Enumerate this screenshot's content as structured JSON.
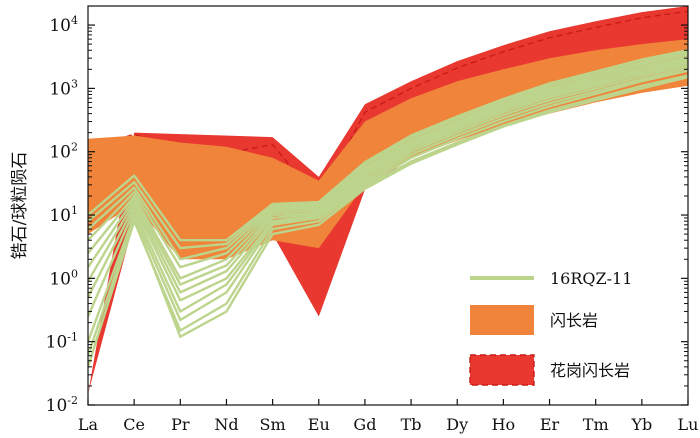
{
  "chart_data": {
    "type": "line",
    "title": "",
    "xlabel": "",
    "ylabel": "锆石/球粒陨石",
    "yscale": "log",
    "ylim": [
      0.01,
      20000
    ],
    "x": [
      "La",
      "Ce",
      "Pr",
      "Nd",
      "Sm",
      "Eu",
      "Gd",
      "Tb",
      "Dy",
      "Ho",
      "Er",
      "Tm",
      "Yb",
      "Lu"
    ],
    "yticks": [
      {
        "value": 0.01,
        "base": "10",
        "exp": "-2"
      },
      {
        "value": 0.1,
        "base": "10",
        "exp": "-1"
      },
      {
        "value": 1,
        "base": "10",
        "exp": "0"
      },
      {
        "value": 10,
        "base": "10",
        "exp": "1"
      },
      {
        "value": 100,
        "base": "10",
        "exp": "2"
      },
      {
        "value": 1000,
        "base": "10",
        "exp": "3"
      },
      {
        "value": 10000,
        "base": "10",
        "exp": "4"
      }
    ],
    "legend_position": "bottom-right",
    "fields": [
      {
        "name": "花岗闪长岩",
        "color": "#e8382f",
        "upper": [
          null,
          200,
          null,
          null,
          170,
          40,
          560,
          1300,
          2700,
          4800,
          8000,
          11500,
          16000,
          20000
        ],
        "lower": [
          0.015,
          8,
          null,
          null,
          5,
          0.25,
          25,
          80,
          180,
          350,
          600,
          900,
          1300,
          1800
        ],
        "dashed_line": [
          110,
          190,
          100,
          95,
          130,
          17,
          420,
          1000,
          2100,
          3800,
          6300,
          9200,
          13000,
          16500
        ]
      },
      {
        "name": "闪长岩",
        "color": "#f0843a",
        "upper": [
          160,
          180,
          140,
          120,
          80,
          35,
          300,
          700,
          1300,
          2000,
          3000,
          4000,
          5000,
          6000
        ],
        "lower": [
          5,
          15,
          2,
          2,
          4,
          3,
          30,
          80,
          150,
          260,
          400,
          600,
          850,
          1100
        ]
      }
    ],
    "sample": {
      "name": "16RQZ-11",
      "color": "#bcd48c",
      "series": [
        [
          0.04,
          8,
          0.15,
          0.4,
          6,
          8,
          28,
          70,
          140,
          260,
          450,
          700,
          1100,
          1600
        ],
        [
          0.1,
          10,
          0.22,
          0.6,
          7,
          9,
          30,
          80,
          160,
          300,
          520,
          820,
          1300,
          1900
        ],
        [
          0.25,
          12,
          0.3,
          0.8,
          7.5,
          9.5,
          33,
          90,
          180,
          340,
          580,
          900,
          1400,
          2100
        ],
        [
          0.5,
          14,
          0.45,
          1,
          8,
          10,
          36,
          100,
          200,
          380,
          650,
          1000,
          1550,
          2300
        ],
        [
          0.9,
          16,
          0.6,
          1.3,
          9,
          10.5,
          40,
          110,
          220,
          420,
          720,
          1100,
          1700,
          2500
        ],
        [
          1.5,
          18,
          0.8,
          1.6,
          10,
          11,
          44,
          120,
          240,
          460,
          780,
          1200,
          1850,
          2700
        ],
        [
          2.5,
          20,
          1,
          2,
          11,
          12,
          48,
          130,
          260,
          500,
          850,
          1300,
          2000,
          2900
        ],
        [
          4,
          23,
          1.5,
          2.5,
          12,
          13,
          52,
          140,
          280,
          540,
          920,
          1420,
          2200,
          3100
        ],
        [
          6,
          27,
          2,
          3,
          13,
          14,
          56,
          150,
          300,
          580,
          1000,
          1550,
          2400,
          3400
        ],
        [
          8,
          33,
          3,
          3.5,
          14,
          15,
          62,
          165,
          330,
          630,
          1100,
          1700,
          2600,
          3700
        ],
        [
          10,
          42,
          4,
          4,
          15,
          16,
          68,
          180,
          360,
          680,
          1200,
          1850,
          2850,
          4000
        ],
        [
          0.06,
          9,
          0.12,
          0.3,
          5,
          7,
          26,
          65,
          130,
          250,
          420,
          650,
          1000,
          1500
        ]
      ]
    }
  }
}
